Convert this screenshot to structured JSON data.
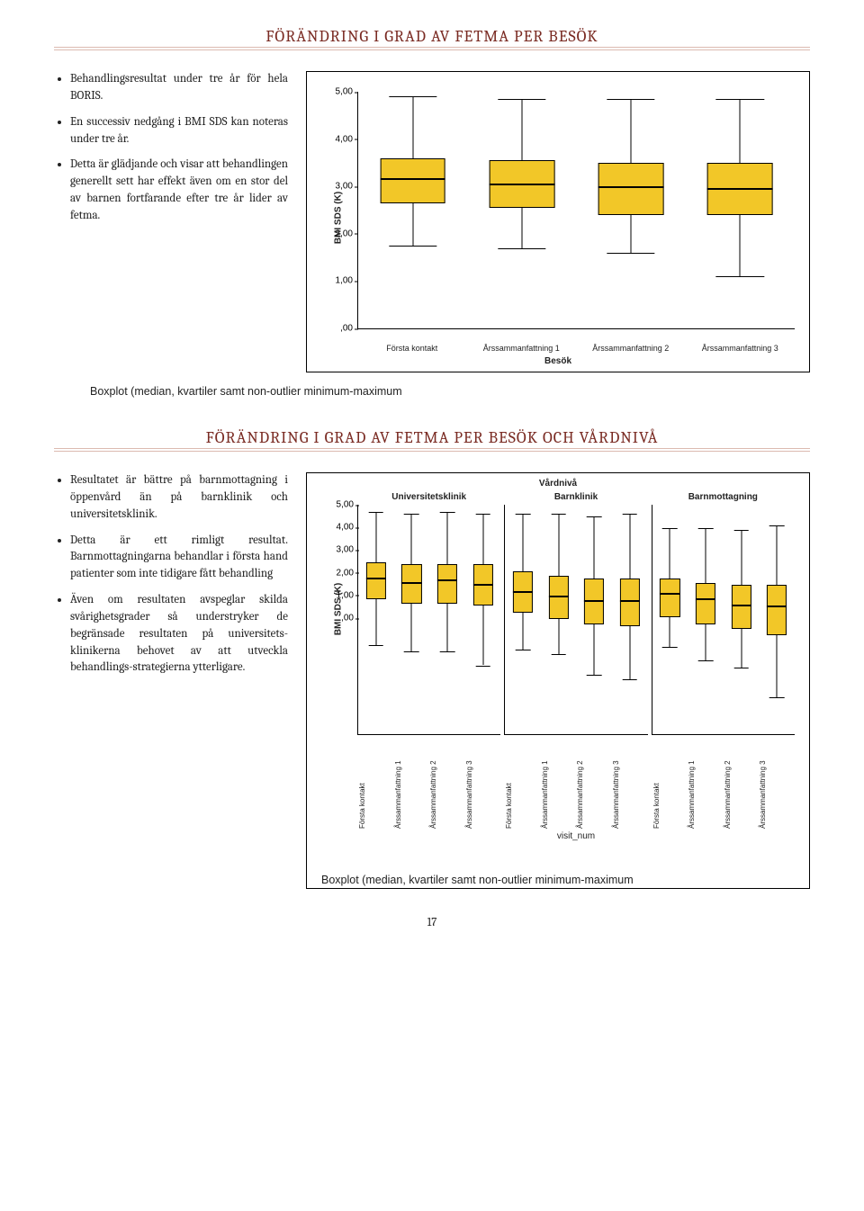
{
  "title1": "FÖRÄNDRING I GRAD AV FETMA PER BESÖK",
  "title2": "FÖRÄNDRING I GRAD AV FETMA PER BESÖK OCH VÅRDNIVÅ",
  "bullets1": [
    "Behandlingsresultat under tre år för hela BORIS.",
    "En successiv nedgång i BMI SDS kan noteras under tre år.",
    "Detta är glädjande och visar att behandlingen generellt sett har effekt även om en stor del av barnen fortfarande efter tre år lider av fetma."
  ],
  "bullets2": [
    "Resultatet är bättre på barnmottagning i öppenvård än på barnklinik och universitetsklinik.",
    "Detta är ett rimligt resultat. Barnmottagningarna behandlar i första hand patienter som inte tidigare fått behandling",
    "Även om resultaten avspeglar skilda svårighetsgrader så understryker de begränsade resultaten på universitets-klinikerna behovet av att utveckla behandlings-strategierna ytterligare."
  ],
  "caption": "Boxplot (median, kvartiler samt non-outlier minimum-maximum",
  "chart1": {
    "ylabel": "BMI SDS (K)",
    "xlabel": "Besök",
    "ylim": [
      0,
      5
    ],
    "yticks": [
      ",00",
      "1,00",
      "2,00",
      "3,00",
      "4,00",
      "5,00"
    ],
    "ytick_vals": [
      0,
      1,
      2,
      3,
      4,
      5
    ],
    "categories": [
      "Första kontakt",
      "Årssammanfattning 1",
      "Årssammanfattning 2",
      "Årssammanfattning 3"
    ],
    "box_color": "#f2c728",
    "box_width_pct": 60,
    "cap_width_pct": 44,
    "boxes": [
      {
        "min": 1.75,
        "q1": 2.65,
        "median": 3.15,
        "q3": 3.6,
        "max": 4.9
      },
      {
        "min": 1.7,
        "q1": 2.55,
        "median": 3.05,
        "q3": 3.55,
        "max": 4.85
      },
      {
        "min": 1.6,
        "q1": 2.4,
        "median": 2.98,
        "q3": 3.5,
        "max": 4.85
      },
      {
        "min": 1.1,
        "q1": 2.4,
        "median": 2.95,
        "q3": 3.5,
        "max": 4.85
      }
    ]
  },
  "chart2": {
    "super_title": "Vårdnivå",
    "ylabel": "BMI SDS (K)",
    "xlabel": "visit_num",
    "ylim": [
      0,
      5
    ],
    "yticks": [
      ",00",
      "1,00",
      "2,00",
      "3,00",
      "4,00",
      "5,00"
    ],
    "ytick_vals": [
      0,
      1,
      2,
      3,
      4,
      5
    ],
    "categories": [
      "Första kontakt",
      "Årssammanfattning 1",
      "Årssammanfattning 2",
      "Årssammanfattning 3"
    ],
    "box_color": "#f2c728",
    "box_width_pct": 56,
    "cap_width_pct": 42,
    "panels": [
      {
        "title": "Universitetsklinik",
        "boxes": [
          {
            "min": 1.95,
            "q1": 2.95,
            "median": 3.4,
            "q3": 3.75,
            "max": 4.85
          },
          {
            "min": 1.8,
            "q1": 2.85,
            "median": 3.3,
            "q3": 3.7,
            "max": 4.8
          },
          {
            "min": 1.8,
            "q1": 2.85,
            "median": 3.35,
            "q3": 3.7,
            "max": 4.85
          },
          {
            "min": 1.5,
            "q1": 2.8,
            "median": 3.25,
            "q3": 3.7,
            "max": 4.8
          }
        ]
      },
      {
        "title": "Barnklinik",
        "boxes": [
          {
            "min": 1.85,
            "q1": 2.65,
            "median": 3.1,
            "q3": 3.55,
            "max": 4.8
          },
          {
            "min": 1.75,
            "q1": 2.5,
            "median": 3.0,
            "q3": 3.45,
            "max": 4.8
          },
          {
            "min": 1.3,
            "q1": 2.4,
            "median": 2.9,
            "q3": 3.4,
            "max": 4.75
          },
          {
            "min": 1.2,
            "q1": 2.35,
            "median": 2.9,
            "q3": 3.4,
            "max": 4.8
          }
        ]
      },
      {
        "title": "Barnmottagning",
        "boxes": [
          {
            "min": 1.9,
            "q1": 2.55,
            "median": 3.05,
            "q3": 3.4,
            "max": 4.5
          },
          {
            "min": 1.6,
            "q1": 2.4,
            "median": 2.95,
            "q3": 3.3,
            "max": 4.5
          },
          {
            "min": 1.45,
            "q1": 2.3,
            "median": 2.8,
            "q3": 3.25,
            "max": 4.45
          },
          {
            "min": 0.8,
            "q1": 2.15,
            "median": 2.78,
            "q3": 3.25,
            "max": 4.55
          }
        ]
      }
    ]
  },
  "page_number": "17"
}
